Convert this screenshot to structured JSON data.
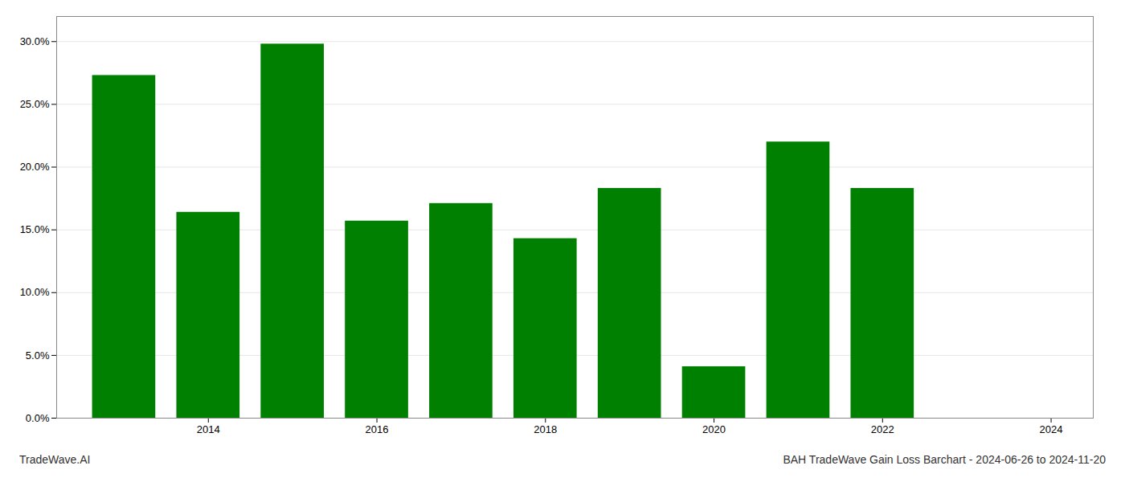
{
  "chart_data": {
    "type": "bar",
    "title": "BAH TradeWave Gain Loss Barchart - 2024-06-26 to 2024-11-20",
    "annotations": [
      "TradeWave.AI"
    ],
    "x": [
      2013,
      2014,
      2015,
      2016,
      2017,
      2018,
      2019,
      2020,
      2021,
      2022
    ],
    "values": [
      0.273,
      0.164,
      0.298,
      0.157,
      0.171,
      0.143,
      0.183,
      0.041,
      0.22,
      0.183
    ],
    "color": "#008000",
    "xlim": [
      2012.2,
      2024.5
    ],
    "xticks": [
      2014,
      2016,
      2018,
      2020,
      2022,
      2024
    ],
    "ylim": [
      0.0,
      0.32
    ],
    "yticks": [
      {
        "value": 0.0,
        "label": "0.0%"
      },
      {
        "value": 0.05,
        "label": "5.0%"
      },
      {
        "value": 0.1,
        "label": "10.0%"
      },
      {
        "value": 0.15,
        "label": "15.0%"
      },
      {
        "value": 0.2,
        "label": "20.0%"
      },
      {
        "value": 0.25,
        "label": "25.0%"
      },
      {
        "value": 0.3,
        "label": "30.0%"
      }
    ],
    "grid": true
  }
}
